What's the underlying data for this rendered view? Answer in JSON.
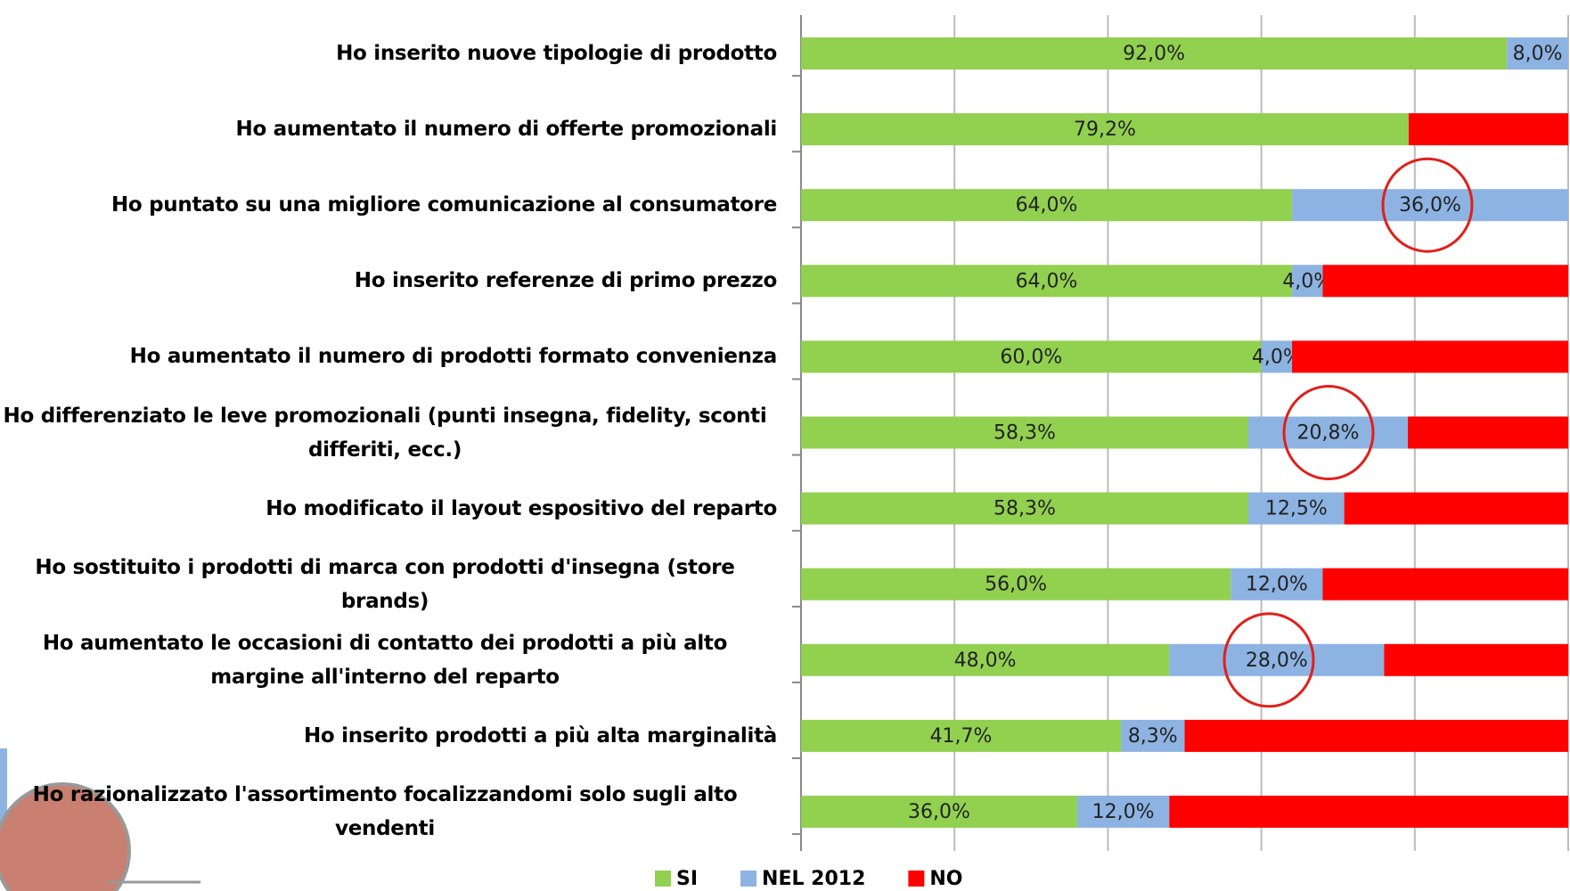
{
  "chart_data": {
    "type": "stacked-bar-horizontal",
    "categories": [
      "Ho inserito nuove tipologie di prodotto",
      "Ho aumentato il numero di offerte promozionali",
      "Ho puntato su una migliore comunicazione al consumatore",
      "Ho inserito referenze di primo prezzo",
      "Ho aumentato il numero di prodotti formato convenienza",
      "Ho differenziato le leve promozionali (punti insegna, fidelity, sconti differiti, ecc.)",
      "Ho modificato il layout espositivo del reparto",
      "Ho sostituito i prodotti di marca con prodotti d'insegna (store brands)",
      "Ho aumentato le occasioni di contatto dei prodotti a più alto margine all'interno del reparto",
      "Ho inserito prodotti a più alta marginalità",
      "Ho razionalizzato l'assortimento focalizzandomi solo sugli alto vendenti"
    ],
    "series": [
      {
        "name": "SI",
        "color": "#92d050",
        "values": [
          92,
          79.2,
          64,
          64,
          60,
          58.3,
          58.3,
          56,
          48,
          41.7,
          36
        ],
        "value_labels": [
          "92,0%",
          "79,2%",
          "64,0%",
          "64,0%",
          "60,0%",
          "58,3%",
          "58,3%",
          "56,0%",
          "48,0%",
          "41,7%",
          "36,0%"
        ]
      },
      {
        "name": "NEL 2012",
        "color": "#8db3e2",
        "values": [
          8,
          0,
          36,
          4,
          4,
          20.8,
          12.5,
          12,
          28,
          8.3,
          12
        ],
        "value_labels": [
          "8,0%",
          null,
          "36,0%",
          "4,0%",
          "4,0%",
          "20,8%",
          "12,5%",
          "12,0%",
          "28,0%",
          "8,3%",
          "12,0%"
        ]
      },
      {
        "name": "NO",
        "color": "#ff0000",
        "values": [
          0,
          20.8,
          0,
          32,
          36,
          20.9,
          29.2,
          32,
          24,
          50,
          52
        ]
      }
    ],
    "xlim": [
      0,
      100
    ],
    "xticks": [
      0,
      20,
      40,
      60,
      80,
      100
    ],
    "grid": true
  }
}
